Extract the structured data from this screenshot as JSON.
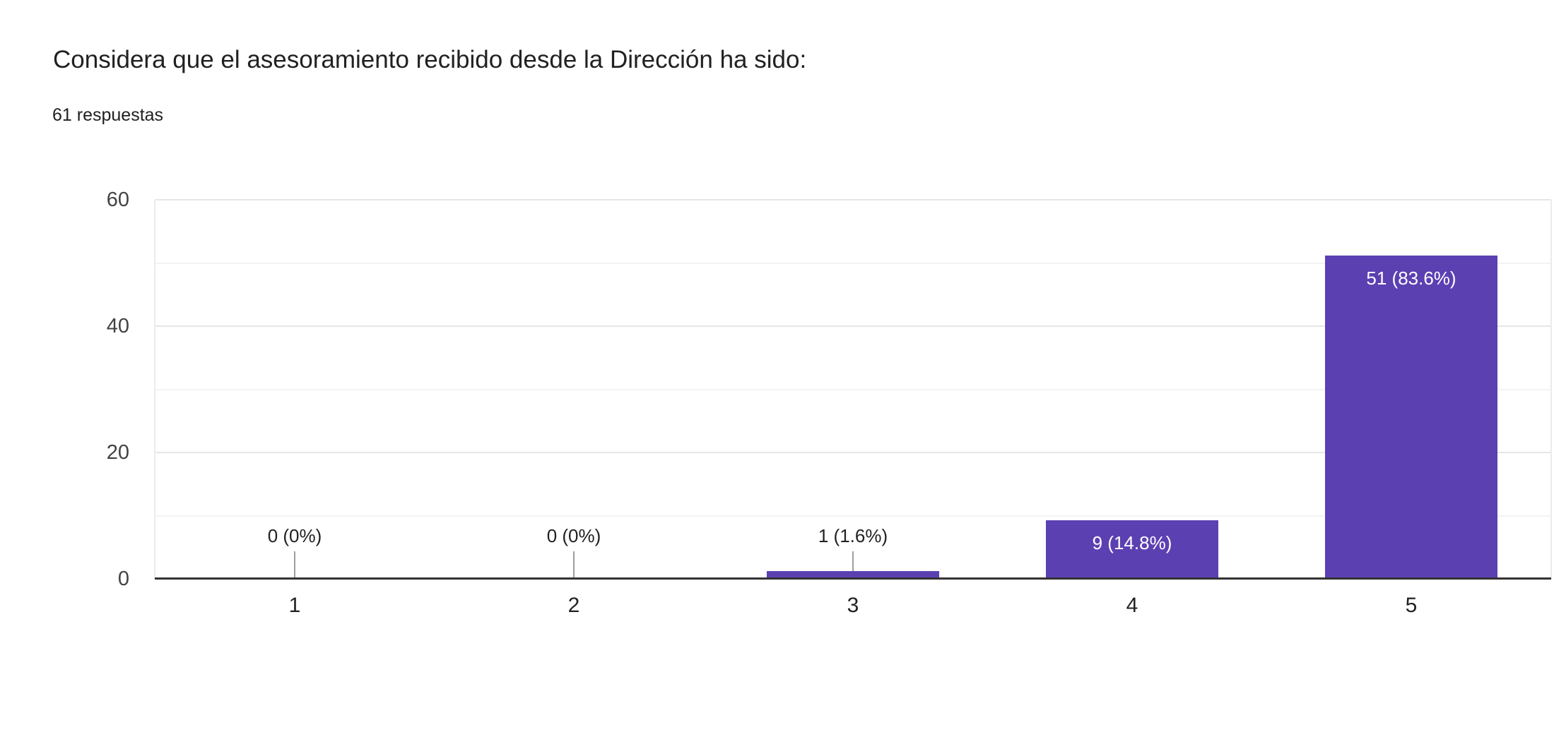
{
  "header": {
    "title": "Considera que el asesoramiento recibido desde la Dirección ha sido:",
    "subtitle": "61 respuestas"
  },
  "chart_data": {
    "type": "bar",
    "title": "Considera que el asesoramiento recibido desde la Dirección ha sido:",
    "subtitle": "61 respuestas",
    "categories": [
      "1",
      "2",
      "3",
      "4",
      "5"
    ],
    "values": [
      0,
      0,
      1,
      9,
      51
    ],
    "value_labels": [
      "0 (0%)",
      "0 (0%)",
      "1 (1.6%)",
      "9 (14.8%)",
      "51 (83.6%)"
    ],
    "ylim": [
      0,
      60
    ],
    "ytick_labels": [
      "0",
      "20",
      "40",
      "60"
    ],
    "yticks": [
      0,
      20,
      40,
      60
    ],
    "gridline_step": 10,
    "grid": "horizontal",
    "legend": "none",
    "colors": {
      "bar": "#5b40b2",
      "inside_label": "#ffffff",
      "outside_label": "#212121",
      "stem": "#9e9e9e",
      "axis_line": "#333333"
    }
  }
}
